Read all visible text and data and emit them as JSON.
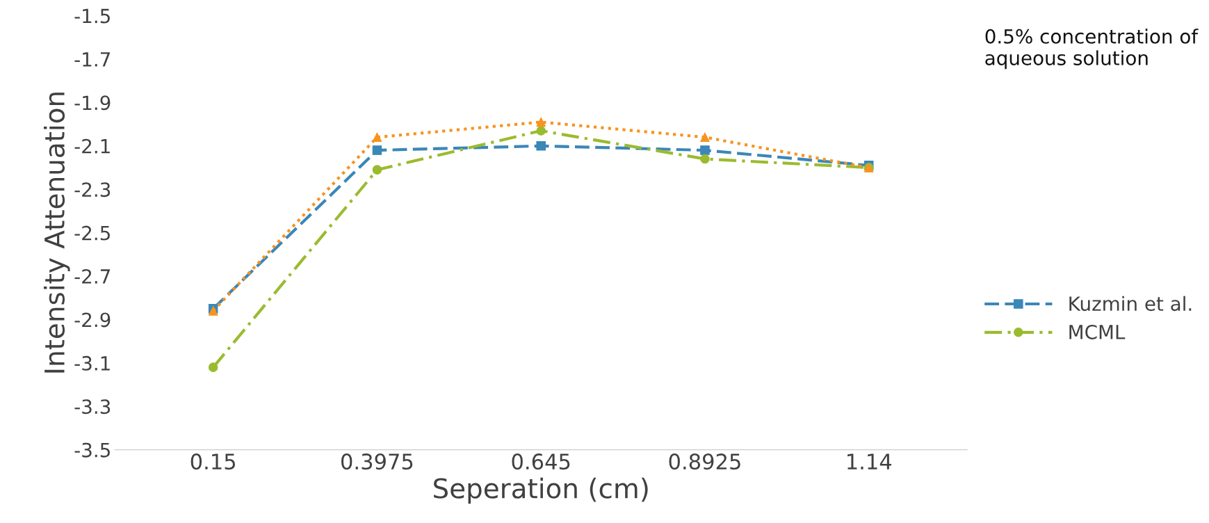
{
  "chart_data": {
    "type": "line",
    "xlabel": "Seperation (cm)",
    "ylabel": "Intensity Attenuation",
    "categories": [
      "0.15",
      "0.3975",
      "0.645",
      "0.8925",
      "1.14"
    ],
    "series": [
      {
        "name": "Kuzmin et al.",
        "color": "#3a87b8",
        "marker": "square",
        "line_style": "dashed",
        "values": [
          -2.85,
          -2.12,
          -2.1,
          -2.12,
          -2.19
        ]
      },
      {
        "name": "MCML",
        "color": "#9bbb2f",
        "marker": "circle",
        "line_style": "dashdot",
        "values": [
          -3.12,
          -2.21,
          -2.03,
          -2.16,
          -2.2
        ]
      },
      {
        "color": "#f7931e",
        "marker": "triangle",
        "line_style": "dotted",
        "values": [
          -2.86,
          -2.06,
          -1.99,
          -2.06,
          -2.2
        ]
      }
    ],
    "ylim": [
      -3.5,
      -1.5
    ],
    "yticks": [
      -3.5,
      -3.3,
      -3.1,
      -2.9,
      -2.7,
      -2.5,
      -2.3,
      -2.1,
      -1.9,
      -1.7,
      -1.5
    ],
    "grid": false,
    "legend": "right",
    "annotations": [
      "0.5% concentration of\naqueous solution"
    ]
  }
}
